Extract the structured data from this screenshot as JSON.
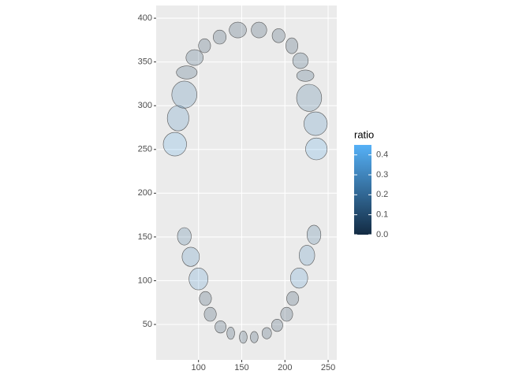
{
  "chart_data": {
    "type": "teeth",
    "x": [
      72.7,
      76.4,
      83.6,
      86.4,
      95.5,
      107,
      124.5,
      145.5,
      170,
      192.7,
      208,
      218,
      223.6,
      228,
      235.5,
      236.4,
      83.6,
      91,
      100,
      108,
      113.6,
      125.5,
      137.3,
      151.8,
      164.5,
      179,
      191,
      202,
      209,
      216.4,
      225.5,
      233.6
    ],
    "y": [
      256,
      285.7,
      312.7,
      338,
      355,
      368.5,
      378.4,
      386.5,
      386.5,
      380,
      368.5,
      351.4,
      334.3,
      309,
      279.4,
      250.6,
      150.7,
      127.3,
      102,
      79.6,
      61.6,
      47.2,
      40,
      35.5,
      35.5,
      40,
      49,
      61.6,
      79.6,
      103,
      129,
      152.5
    ],
    "widths": [
      27,
      25,
      29,
      24,
      20,
      14,
      15,
      20,
      18,
      15,
      14,
      18,
      20,
      29,
      27,
      25,
      16,
      20,
      22,
      14,
      14,
      13,
      9,
      9,
      9,
      11,
      13,
      14,
      14,
      20,
      18,
      16
    ],
    "heights": [
      27,
      29,
      31,
      15,
      18,
      16,
      16,
      18,
      18,
      16,
      18,
      18,
      13,
      31,
      27,
      25,
      20,
      22,
      25,
      16,
      16,
      14,
      14,
      14,
      13,
      13,
      14,
      16,
      16,
      23,
      23,
      22
    ],
    "ratio": [
      0.4,
      0.3,
      0.25,
      0.1,
      0.1,
      0.05,
      0.05,
      0.05,
      0.05,
      0.05,
      0.05,
      0.1,
      0.1,
      0.2,
      0.3,
      0.4,
      0.2,
      0.3,
      0.35,
      0.05,
      0.05,
      0.05,
      0.05,
      0.05,
      0.05,
      0.05,
      0.05,
      0.05,
      0.05,
      0.35,
      0.3,
      0.2
    ],
    "xlim": [
      51,
      260
    ],
    "ylim": [
      9.5,
      414.5
    ],
    "xticks": [
      100,
      150,
      200,
      250
    ],
    "yticks": [
      50,
      100,
      150,
      200,
      250,
      300,
      350,
      400
    ],
    "grid": true,
    "colorbar": {
      "title": "ratio",
      "lim": [
        0,
        0.45
      ],
      "low": "#132B43",
      "high": "#56B1F7",
      "ticks": [
        {
          "value": 0,
          "label": "0.0"
        },
        0.1,
        0.2,
        0.3,
        0.4
      ]
    }
  }
}
